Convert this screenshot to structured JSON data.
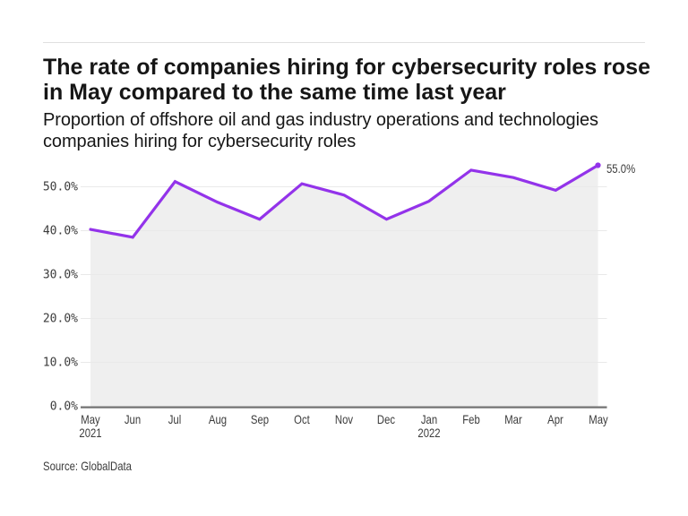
{
  "header": {
    "title": "The rate of companies hiring for cybersecurity roles rose\nin May compared to the same time last year",
    "subtitle": "Proportion of offshore oil and gas industry operations and technologies\ncompanies hiring for cybersecurity roles"
  },
  "footer": {
    "source": "Source: GlobalData"
  },
  "colors": {
    "line": "#9333ea",
    "area_fill": "#efefef",
    "grid": "#e9e9e9",
    "axis": "#737373",
    "title_text": "#161616",
    "tick_text": "#3b3b3b",
    "rule": "#e0e0e0",
    "background": "#ffffff"
  },
  "chart_data": {
    "type": "area",
    "title": "The rate of companies hiring for cybersecurity roles rose in May compared to the same time last year",
    "subtitle": "Proportion of offshore oil and gas industry operations and technologies companies hiring for cybersecurity roles",
    "categories": [
      "May 2021",
      "Jun",
      "Jul",
      "Aug",
      "Sep",
      "Oct",
      "Nov",
      "Dec",
      "Jan 2022",
      "Feb",
      "Mar",
      "Apr",
      "May"
    ],
    "values": [
      40.4,
      38.6,
      51.3,
      46.6,
      42.7,
      50.8,
      48.2,
      42.7,
      46.8,
      53.9,
      52.2,
      49.3,
      55.0
    ],
    "x_tick_labels": [
      {
        "label": "May",
        "sub": "2021"
      },
      {
        "label": "Jun"
      },
      {
        "label": "Jul"
      },
      {
        "label": "Aug"
      },
      {
        "label": "Sep"
      },
      {
        "label": "Oct"
      },
      {
        "label": "Nov"
      },
      {
        "label": "Dec"
      },
      {
        "label": "Jan",
        "sub": "2022"
      },
      {
        "label": "Feb"
      },
      {
        "label": "Mar"
      },
      {
        "label": "Apr"
      },
      {
        "label": "May"
      }
    ],
    "y_tick_values": [
      0,
      10,
      20,
      30,
      40,
      50
    ],
    "y_tick_labels": [
      "0.0%",
      "10.0%",
      "20.0%",
      "30.0%",
      "40.0%",
      "50.0%"
    ],
    "end_point_label": "55.0%",
    "ylim": [
      0,
      55
    ],
    "grid": true,
    "legend": false,
    "source": "Source: GlobalData"
  }
}
